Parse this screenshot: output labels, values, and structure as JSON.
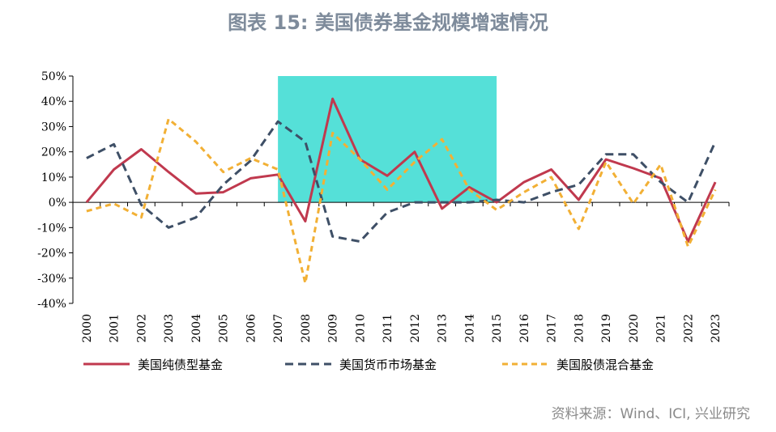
{
  "header": {
    "title": "图表 15: 美国债券基金规模增速情况"
  },
  "footer": {
    "source": "资料来源：Wind、ICI, 兴业研究"
  },
  "chart_data": {
    "type": "line",
    "x": [
      "2000",
      "2001",
      "2002",
      "2003",
      "2004",
      "2005",
      "2006",
      "2007",
      "2008",
      "2009",
      "2010",
      "2011",
      "2012",
      "2013",
      "2014",
      "2015",
      "2016",
      "2017",
      "2018",
      "2019",
      "2020",
      "2021",
      "2022",
      "2023"
    ],
    "ylim": [
      -40,
      50
    ],
    "yticks": [
      50,
      40,
      30,
      20,
      10,
      0,
      -10,
      -20,
      -30,
      -40
    ],
    "ytick_labels": [
      "50%",
      "40%",
      "30%",
      "20%",
      "10%",
      "0%",
      "-10%",
      "-20%",
      "-30%",
      "-40%"
    ],
    "highlight_range": [
      "2007",
      "2015"
    ],
    "highlight_color": "#55e0d8",
    "legend_position": "bottom",
    "series": [
      {
        "name": "美国纯债型基金",
        "color": "#c0394e",
        "dash": "solid",
        "values": [
          0,
          13,
          21,
          12,
          3.5,
          4,
          9.5,
          11,
          -7.5,
          41,
          17,
          10.5,
          20,
          -2.5,
          6,
          0,
          8,
          13,
          1,
          17,
          13.5,
          9.5,
          -15.5,
          8
        ]
      },
      {
        "name": "美国货币市场基金",
        "color": "#3e4f66",
        "dash": "dashed",
        "values": [
          17.5,
          23,
          -1,
          -10,
          -6,
          7,
          16.5,
          32,
          24,
          -13.5,
          -15.5,
          -4,
          0,
          0,
          0,
          1,
          0,
          4,
          7,
          19,
          19,
          8,
          0,
          24
        ]
      },
      {
        "name": "美国股债混合基金",
        "color": "#f2b035",
        "dash": "dashed",
        "values": [
          -3.5,
          -0.5,
          -6,
          33,
          24,
          12,
          17.5,
          13,
          -32,
          27.5,
          17,
          5,
          16,
          25,
          5,
          -3,
          4,
          10,
          -10.5,
          16,
          -0.5,
          15,
          -17.5,
          5
        ]
      }
    ]
  }
}
